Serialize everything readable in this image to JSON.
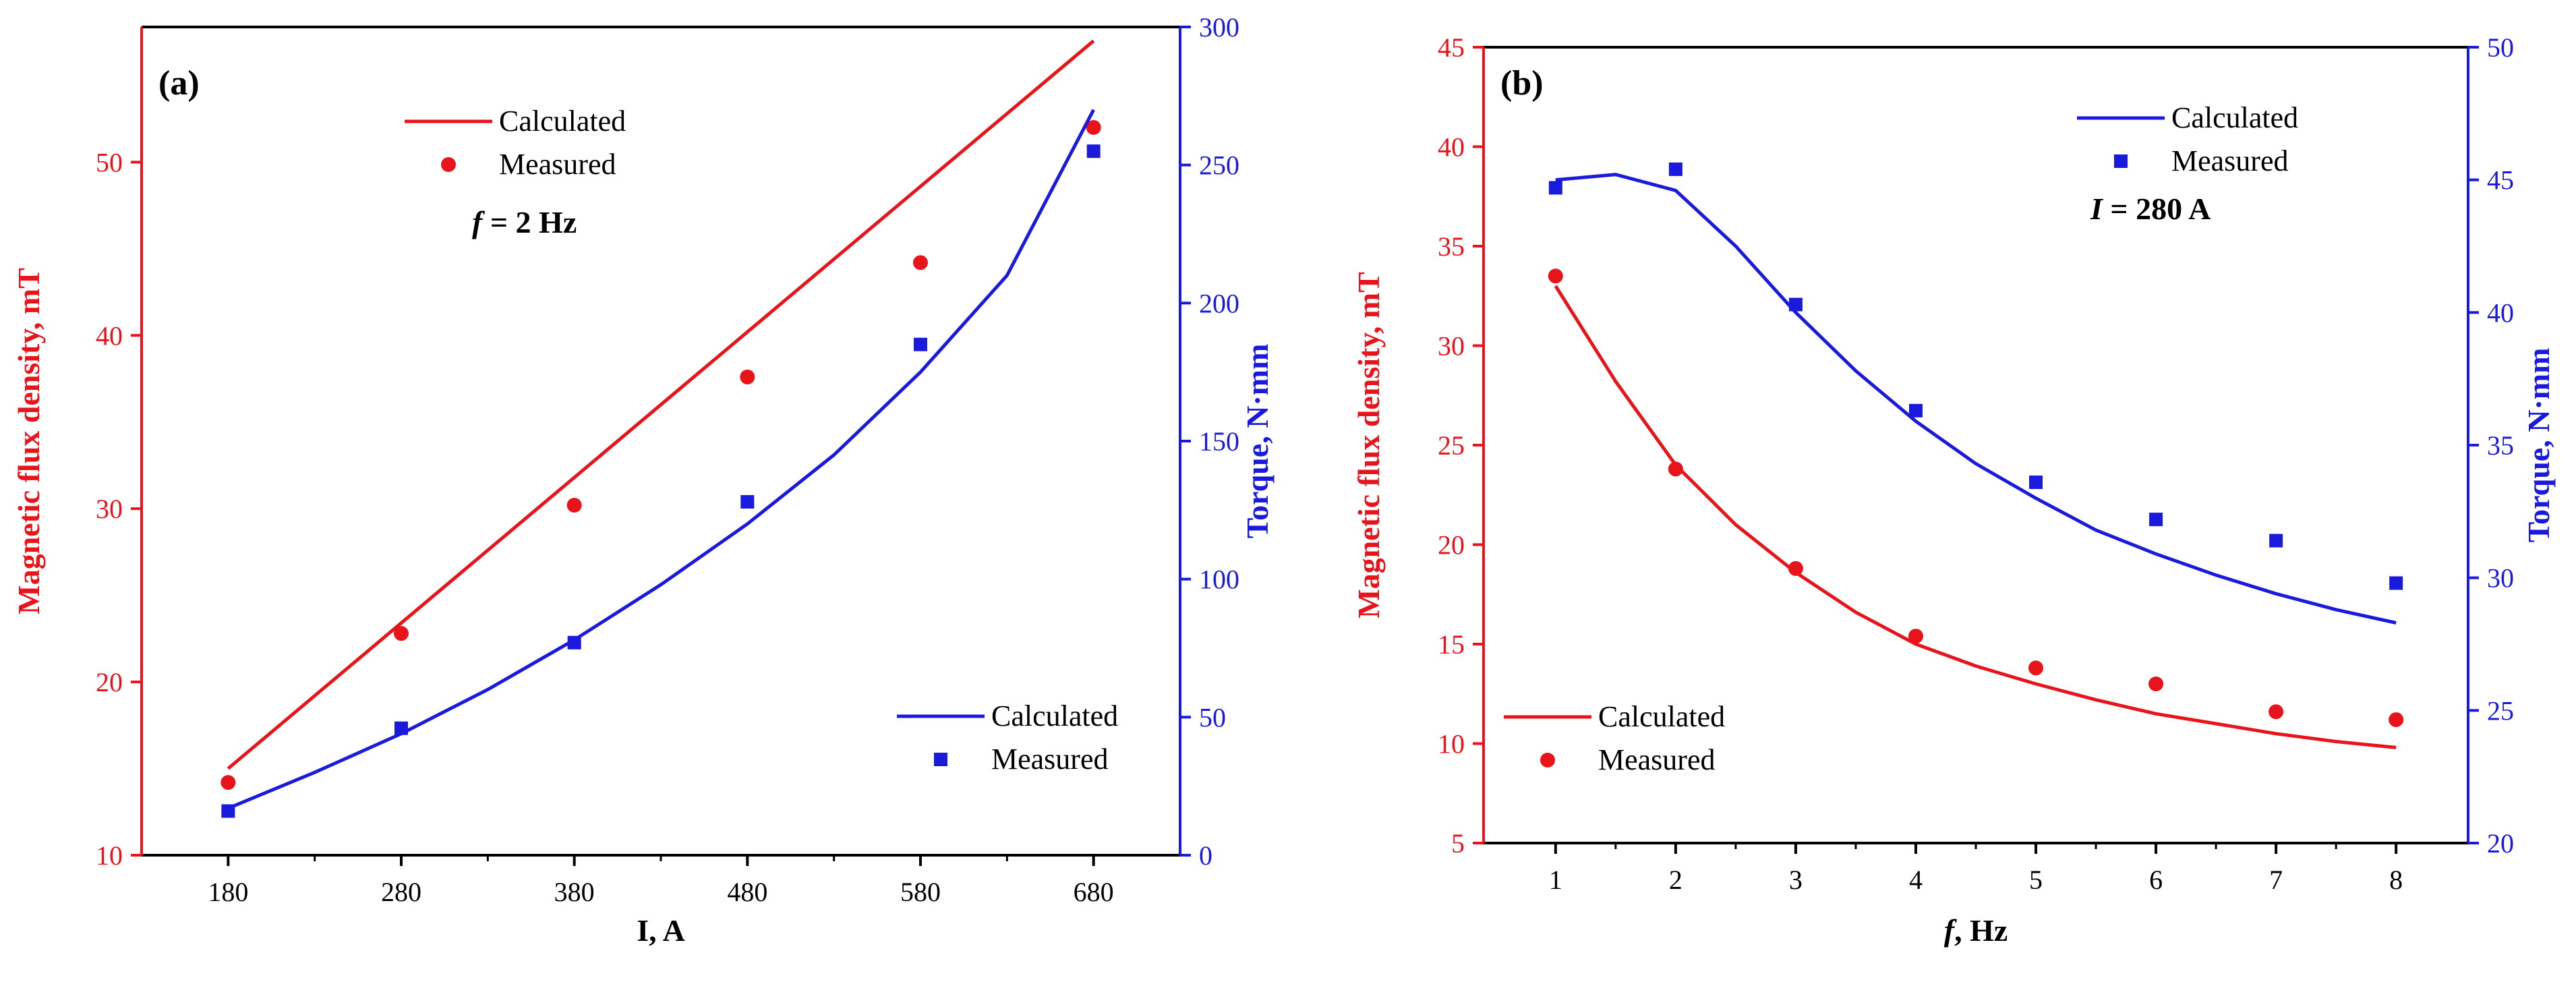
{
  "chart_data": [
    {
      "panel_label": "(a)",
      "type": "line+scatter",
      "annotation": {
        "var": "f",
        "rest": " = 2 Hz"
      },
      "xlabel": "I, A",
      "ylabel_left": "Magnetic flux density, mT",
      "ylabel_right": "Torque, N·mm",
      "xlim": [
        130,
        730
      ],
      "ylim_left": [
        10,
        57.8
      ],
      "ylim_right": [
        0,
        300
      ],
      "x_ticks": [
        180,
        280,
        380,
        480,
        580,
        680
      ],
      "x_tick_labels": [
        "180",
        "280",
        "380",
        "480",
        "580",
        "680"
      ],
      "y_left_ticks": [
        10,
        20,
        30,
        40,
        50
      ],
      "y_left_tick_labels": [
        "10",
        "20",
        "30",
        "40",
        "50"
      ],
      "y_right_ticks": [
        0,
        50,
        100,
        150,
        200,
        250,
        300
      ],
      "y_right_tick_labels": [
        "0",
        "50",
        "100",
        "150",
        "200",
        "250",
        "300"
      ],
      "legend_left": {
        "calculated": "Calculated",
        "measured": "Measured",
        "placement": "top-left"
      },
      "legend_right": {
        "calculated": "Calculated",
        "measured": "Measured",
        "placement": "bottom-right"
      },
      "series": [
        {
          "name": "Magnetic flux density calculated",
          "axis": "left",
          "kind": "line",
          "color": "#e8141c",
          "x": [
            180,
            680
          ],
          "y": [
            15.0,
            57.0
          ]
        },
        {
          "name": "Magnetic flux density measured",
          "axis": "left",
          "kind": "points",
          "marker": "circle",
          "color": "#e8141c",
          "x": [
            180,
            280,
            380,
            480,
            580,
            680
          ],
          "y": [
            14.2,
            22.8,
            30.2,
            37.6,
            44.2,
            52.0
          ]
        },
        {
          "name": "Torque calculated",
          "axis": "right",
          "kind": "line",
          "color": "#1a1adc",
          "x": [
            180,
            230,
            280,
            330,
            380,
            430,
            480,
            530,
            580,
            630,
            680
          ],
          "y": [
            17,
            30,
            44,
            60,
            78,
            98,
            120,
            145,
            175,
            210,
            270
          ]
        },
        {
          "name": "Torque measured",
          "axis": "right",
          "kind": "points",
          "marker": "square",
          "color": "#1a1adc",
          "x": [
            180,
            280,
            380,
            480,
            580,
            680
          ],
          "y": [
            16,
            46,
            77,
            128,
            185,
            255
          ]
        }
      ]
    },
    {
      "panel_label": "(b)",
      "type": "line+scatter",
      "annotation": {
        "var": "I",
        "rest": " = 280 A"
      },
      "xlabel": "f, Hz",
      "ylabel_left": "Magnetic flux density, mT",
      "ylabel_right": "Torque, N·mm",
      "xlim": [
        0.4,
        8.6
      ],
      "ylim_left": [
        5,
        45
      ],
      "ylim_right": [
        20,
        50
      ],
      "x_ticks": [
        1,
        2,
        3,
        4,
        5,
        6,
        7,
        8
      ],
      "x_tick_labels": [
        "1",
        "2",
        "3",
        "4",
        "5",
        "6",
        "7",
        "8"
      ],
      "y_left_ticks": [
        5,
        10,
        15,
        20,
        25,
        30,
        35,
        40,
        45
      ],
      "y_left_tick_labels": [
        "5",
        "10",
        "15",
        "20",
        "25",
        "30",
        "35",
        "40",
        "45"
      ],
      "y_right_ticks": [
        20,
        25,
        30,
        35,
        40,
        45,
        50
      ],
      "y_right_tick_labels": [
        "20",
        "25",
        "30",
        "35",
        "40",
        "45",
        "50"
      ],
      "legend_left": {
        "calculated": "Calculated",
        "measured": "Measured",
        "placement": "bottom-left"
      },
      "legend_right": {
        "calculated": "Calculated",
        "measured": "Measured",
        "placement": "top-right"
      },
      "series": [
        {
          "name": "Magnetic flux density calculated",
          "axis": "left",
          "kind": "line",
          "color": "#e8141c",
          "x": [
            1,
            1.5,
            2,
            2.5,
            3,
            3.5,
            4,
            4.5,
            5,
            5.5,
            6,
            6.5,
            7,
            7.5,
            8
          ],
          "y": [
            33.0,
            28.2,
            24.0,
            21.0,
            18.6,
            16.6,
            15.0,
            13.9,
            13.0,
            12.2,
            11.5,
            11.0,
            10.5,
            10.1,
            9.8
          ]
        },
        {
          "name": "Magnetic flux density measured",
          "axis": "left",
          "kind": "points",
          "marker": "circle",
          "color": "#e8141c",
          "x": [
            1,
            2,
            3,
            4,
            5,
            6,
            7,
            8
          ],
          "y": [
            33.5,
            23.8,
            18.8,
            15.4,
            13.8,
            13.0,
            11.6,
            11.2
          ]
        },
        {
          "name": "Torque calculated",
          "axis": "right",
          "kind": "line",
          "color": "#1a1adc",
          "x": [
            1,
            1.5,
            2,
            2.5,
            3,
            3.5,
            4,
            4.5,
            5,
            5.5,
            6,
            6.5,
            7,
            7.5,
            8
          ],
          "y": [
            45.0,
            45.2,
            44.6,
            42.5,
            40.0,
            37.8,
            35.9,
            34.3,
            33.0,
            31.8,
            30.9,
            30.1,
            29.4,
            28.8,
            28.3
          ]
        },
        {
          "name": "Torque measured",
          "axis": "right",
          "kind": "points",
          "marker": "square",
          "color": "#1a1adc",
          "x": [
            1,
            2,
            3,
            4,
            5,
            6,
            7,
            8
          ],
          "y": [
            44.7,
            45.4,
            40.3,
            36.3,
            33.6,
            32.2,
            31.4,
            29.8
          ]
        }
      ]
    }
  ],
  "colors": {
    "left_axis": "#e8141c",
    "right_axis": "#1a1adc",
    "frame": "#000000"
  }
}
